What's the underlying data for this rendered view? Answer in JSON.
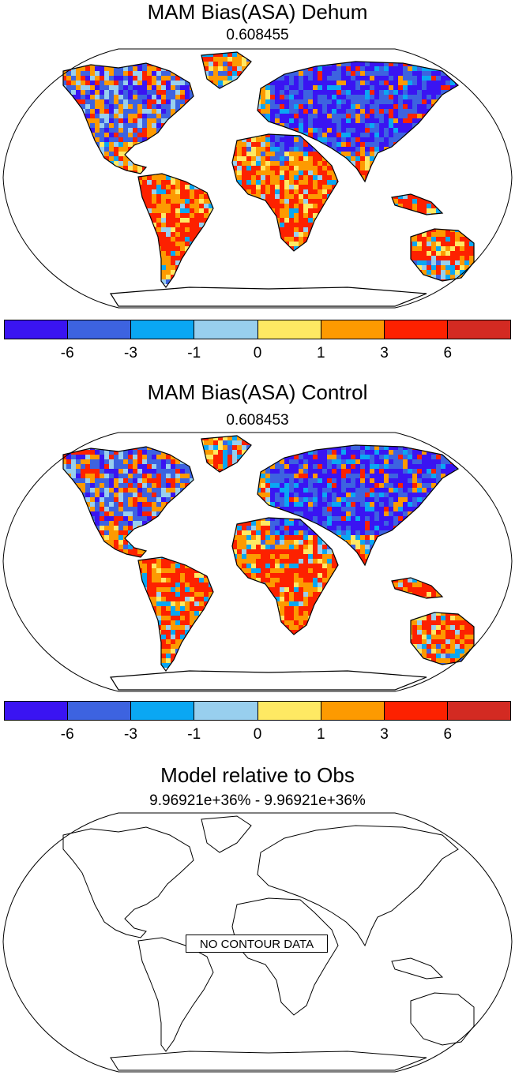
{
  "panels": [
    {
      "title": "MAM Bias(ASA) Dehum",
      "subtitle": "0.608455"
    },
    {
      "title": "MAM Bias(ASA) Control",
      "subtitle": "0.608453"
    },
    {
      "title": "Model relative to Obs",
      "subtitle": "9.96921e+36% - 9.96921e+36%",
      "empty_label": "NO CONTOUR DATA"
    }
  ],
  "colorbar": {
    "colors": [
      "#3a14f2",
      "#3d63e0",
      "#0aa7f3",
      "#98cfee",
      "#fee963",
      "#fd9a01",
      "#fd2100",
      "#d32a22"
    ],
    "tick_labels": [
      "-6",
      "-3",
      "-1",
      "0",
      "1",
      "3",
      "6"
    ]
  },
  "map_style": {
    "projection": "Robinson",
    "coastlines": true
  }
}
